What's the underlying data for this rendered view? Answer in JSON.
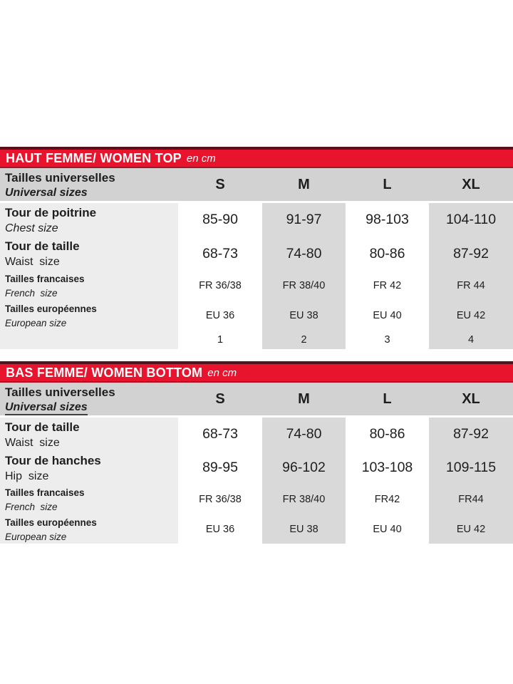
{
  "colors": {
    "red_bar": "#e8142e",
    "red_bar_top_border": "#54121a",
    "red_bar_bottom_border": "#a51324",
    "header_row_bg": "#d2d2d2",
    "label_column_bg": "#ededed",
    "alt_column_bg": "#d9d9d9",
    "text": "#1e1e1e"
  },
  "tables": [
    {
      "title": "HAUT FEMME/ WOMEN TOP",
      "unit": "en cm",
      "header": {
        "label_fr": "Tailles universelles",
        "label_en": "Universal sizes"
      },
      "sizes": [
        "S",
        "M",
        "L",
        "XL"
      ],
      "rows": [
        {
          "label_fr": "Tour de poitrine",
          "label_en": "Chest size",
          "values": [
            "85-90",
            "91-97",
            "98-103",
            "104-110"
          ]
        },
        {
          "label_fr": "Tour de taille",
          "label_en": "Waist  size",
          "values": [
            "68-73",
            "74-80",
            "80-86",
            "87-92"
          ]
        },
        {
          "label_fr": "Tailles francaises",
          "label_en": "French  size",
          "values": [
            "FR 36/38",
            "FR 38/40",
            "FR 42",
            "FR 44"
          ]
        },
        {
          "label_fr": "Tailles européennes",
          "label_en": "European size",
          "values": [
            "EU 36",
            "EU 38",
            "EU 40",
            "EU 42"
          ]
        },
        {
          "label_fr": "",
          "label_en": "",
          "values": [
            "1",
            "2",
            "3",
            "4"
          ]
        }
      ]
    },
    {
      "title": "BAS FEMME/ WOMEN BOTTOM",
      "unit": "en cm",
      "header": {
        "label_fr": "Tailles universelles",
        "label_en": "Universal sizes"
      },
      "sizes": [
        "S",
        "M",
        "L",
        "XL"
      ],
      "rows": [
        {
          "label_fr": "Tour de taille",
          "label_en": "Waist  size",
          "values": [
            "68-73",
            "74-80",
            "80-86",
            "87-92"
          ]
        },
        {
          "label_fr": "Tour de hanches",
          "label_en": "Hip  size",
          "values": [
            "89-95",
            "96-102",
            "103-108",
            "109-115"
          ]
        },
        {
          "label_fr": "Tailles francaises",
          "label_en": "French  size",
          "values": [
            "FR 36/38",
            "FR 38/40",
            "FR42",
            "FR44"
          ]
        },
        {
          "label_fr": "Tailles européennes",
          "label_en": "European size",
          "values": [
            "EU 36",
            "EU 38",
            "EU 40",
            "EU 42"
          ]
        }
      ]
    }
  ]
}
